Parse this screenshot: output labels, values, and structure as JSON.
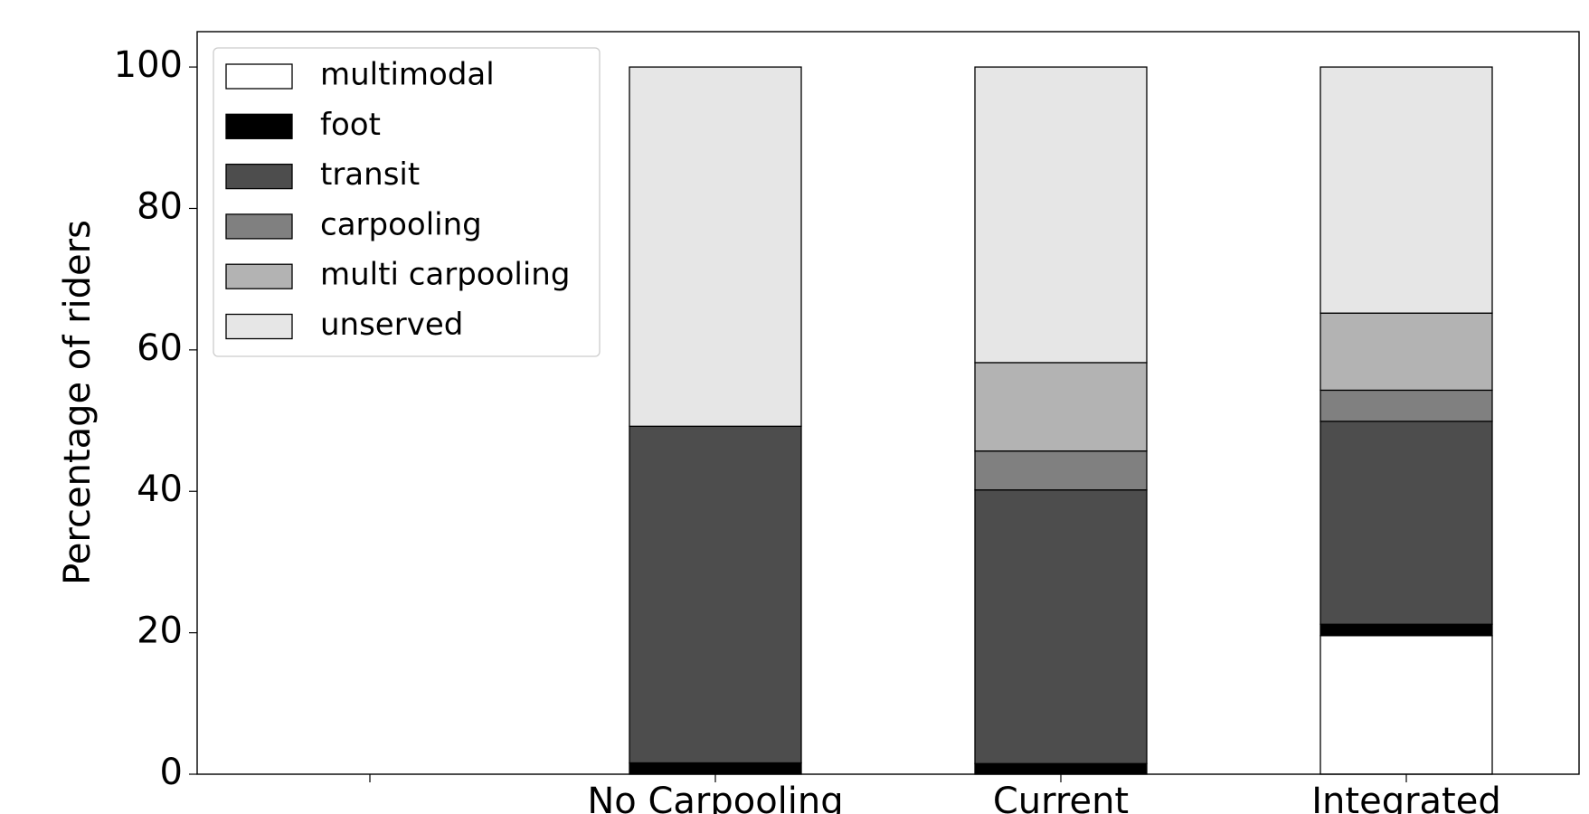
{
  "chart_data": {
    "type": "stacked_bar",
    "ylabel": "Percentage of riders",
    "categories": [
      null,
      "No Carpooling",
      "Current",
      "Integrated"
    ],
    "series": [
      {
        "name": "multimodal",
        "color": "#ffffff",
        "values": [
          0,
          0,
          0,
          19.6
        ]
      },
      {
        "name": "foot",
        "color": "#000000",
        "values": [
          0,
          1.6,
          1.5,
          1.6
        ]
      },
      {
        "name": "transit",
        "color": "#4d4d4d",
        "values": [
          0,
          47.6,
          38.7,
          28.7
        ]
      },
      {
        "name": "carpooling",
        "color": "#808080",
        "values": [
          0,
          0,
          5.5,
          4.4
        ]
      },
      {
        "name": "multi carpooling",
        "color": "#b3b3b3",
        "values": [
          0,
          0,
          12.5,
          10.9
        ]
      },
      {
        "name": "unserved",
        "color": "#e6e6e6",
        "values": [
          0,
          50.8,
          41.8,
          34.8
        ]
      }
    ],
    "ylim": [
      0,
      105
    ],
    "yticks": [
      0,
      20,
      40,
      60,
      80,
      100
    ],
    "legend": "upper left"
  }
}
